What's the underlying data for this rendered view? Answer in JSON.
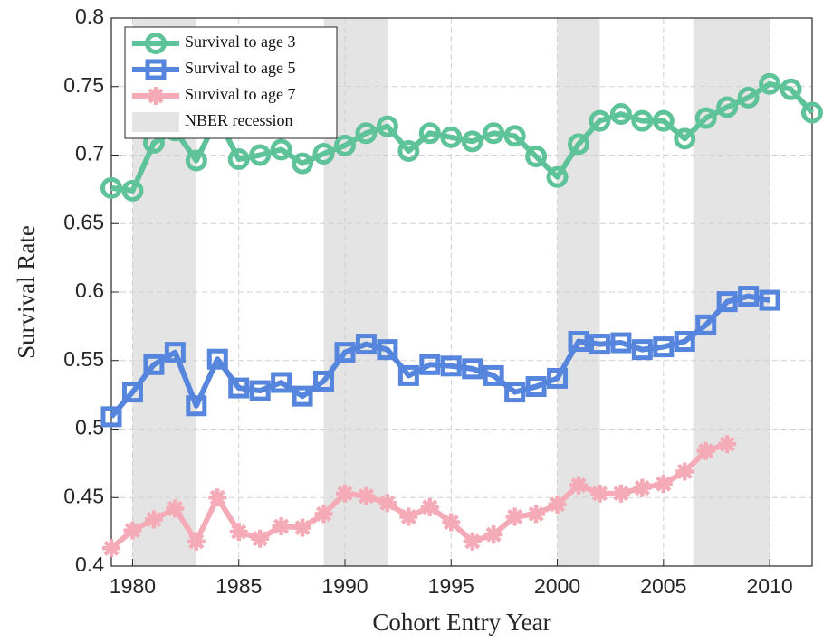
{
  "chart_data": {
    "type": "line",
    "x_label": "Cohort Entry Year",
    "y_label": "Survival Rate",
    "xlim": [
      1979,
      2012
    ],
    "ylim": [
      0.4,
      0.8
    ],
    "xticks": [
      1980,
      1985,
      1990,
      1995,
      2000,
      2005,
      2010
    ],
    "yticks": [
      0.4,
      0.45,
      0.5,
      0.55,
      0.6,
      0.65,
      0.7,
      0.75,
      0.8
    ],
    "grid": true,
    "legend": "upper left",
    "series": [
      {
        "name": "Survival to age 3",
        "color": "#5fc39a",
        "marker": "circle",
        "x": [
          1979,
          1980,
          1981,
          1982,
          1983,
          1984,
          1985,
          1986,
          1987,
          1988,
          1989,
          1990,
          1991,
          1992,
          1993,
          1994,
          1995,
          1996,
          1997,
          1998,
          1999,
          2000,
          2001,
          2002,
          2003,
          2004,
          2005,
          2006,
          2007,
          2008,
          2009,
          2010,
          2011,
          2012
        ],
        "values": [
          0.676,
          0.674,
          0.709,
          0.718,
          0.696,
          0.727,
          0.697,
          0.7,
          0.704,
          0.694,
          0.701,
          0.707,
          0.716,
          0.721,
          0.703,
          0.716,
          0.713,
          0.71,
          0.716,
          0.714,
          0.699,
          0.684,
          0.708,
          0.725,
          0.73,
          0.725,
          0.725,
          0.712,
          0.727,
          0.735,
          0.742,
          0.752,
          0.748,
          0.731
        ]
      },
      {
        "name": "Survival to age 5",
        "color": "#5585dc",
        "marker": "square",
        "x": [
          1979,
          1980,
          1981,
          1982,
          1983,
          1984,
          1985,
          1986,
          1987,
          1988,
          1989,
          1990,
          1991,
          1992,
          1993,
          1994,
          1995,
          1996,
          1997,
          1998,
          1999,
          2000,
          2001,
          2002,
          2003,
          2004,
          2005,
          2006,
          2007,
          2008,
          2009,
          2010
        ],
        "values": [
          0.509,
          0.527,
          0.547,
          0.556,
          0.517,
          0.551,
          0.53,
          0.528,
          0.534,
          0.524,
          0.535,
          0.556,
          0.562,
          0.558,
          0.539,
          0.547,
          0.546,
          0.544,
          0.539,
          0.527,
          0.531,
          0.537,
          0.564,
          0.562,
          0.563,
          0.558,
          0.56,
          0.564,
          0.576,
          0.593,
          0.597,
          0.594
        ]
      },
      {
        "name": "Survival to age 7",
        "color": "#f5abb7",
        "marker": "asterisk",
        "x": [
          1979,
          1980,
          1981,
          1982,
          1983,
          1984,
          1985,
          1986,
          1987,
          1988,
          1989,
          1990,
          1991,
          1992,
          1993,
          1994,
          1995,
          1996,
          1997,
          1998,
          1999,
          2000,
          2001,
          2002,
          2003,
          2004,
          2005,
          2006,
          2007,
          2008
        ],
        "values": [
          0.413,
          0.426,
          0.434,
          0.442,
          0.418,
          0.45,
          0.425,
          0.42,
          0.429,
          0.428,
          0.438,
          0.453,
          0.451,
          0.446,
          0.436,
          0.443,
          0.432,
          0.418,
          0.423,
          0.436,
          0.438,
          0.445,
          0.459,
          0.453,
          0.453,
          0.457,
          0.46,
          0.469,
          0.484,
          0.489
        ]
      }
    ],
    "shading": {
      "name": "NBER recession",
      "color": "#e4e4e4",
      "ranges": [
        [
          1980,
          1983
        ],
        [
          1989,
          1992
        ],
        [
          2000,
          2002
        ],
        [
          2006.4,
          2010
        ]
      ]
    }
  }
}
